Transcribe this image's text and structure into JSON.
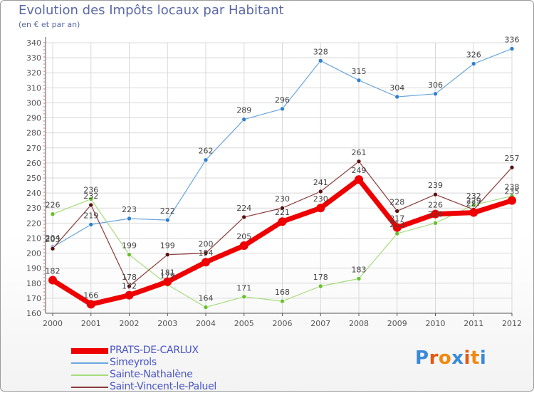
{
  "title": "Evolution des Impôts locaux par Habitant",
  "subtitle": "(en € et par an)",
  "logo_text": "Proxiti",
  "colors": {
    "title": "#5a68a8",
    "grid": "#d8d8d8",
    "axis": "#555555",
    "label": "#555555",
    "logo_letters": [
      "#3a8ad8",
      "#e05a10",
      "#f08a10",
      "#3a8ad8",
      "#e05a10",
      "#f08a10",
      "#3a8ad8"
    ]
  },
  "chart_data": {
    "type": "line",
    "title": "Evolution des Impôts locaux par Habitant",
    "subtitle": "(en € et par an)",
    "xlabel": "",
    "ylabel": "",
    "x": [
      "2000",
      "2001",
      "2002",
      "2003",
      "2004",
      "2005",
      "2006",
      "2007",
      "2008",
      "2009",
      "2010",
      "2011",
      "2012"
    ],
    "ylim": [
      160,
      340
    ],
    "yticks": [
      160,
      170,
      180,
      190,
      200,
      210,
      220,
      230,
      240,
      250,
      260,
      270,
      280,
      290,
      300,
      310,
      320,
      330,
      340
    ],
    "grid": true,
    "legend_position": "bottom-left",
    "series": [
      {
        "name": "PRATS-DE-CARLUX",
        "color": "#ee0000",
        "marker": "#ee0000",
        "width": 7,
        "labels": true,
        "values": [
          182,
          166,
          172,
          181,
          194,
          205,
          221,
          230,
          249,
          217,
          226,
          227,
          235
        ],
        "label_text": [
          "182",
          "166",
          "172",
          "181",
          "194",
          "205",
          "221",
          "230",
          "249",
          "217",
          "226",
          "227",
          "235"
        ]
      },
      {
        "name": "Simeyrols",
        "color": "#6aa6dc",
        "marker": "#2f7fd0",
        "width": 1.2,
        "labels": true,
        "values": [
          204,
          219,
          223,
          222,
          262,
          289,
          296,
          328,
          315,
          304,
          306,
          326,
          336
        ],
        "label_text": [
          "204",
          "219",
          "223",
          "222",
          "262",
          "289",
          "296",
          "328",
          "315",
          "304",
          "306",
          "326",
          "336"
        ]
      },
      {
        "name": "Sainte-Nathalène",
        "color": "#a6dc7c",
        "marker": "#66c02a",
        "width": 1.2,
        "labels": true,
        "values": [
          226,
          236,
          199,
          179,
          164,
          171,
          168,
          178,
          183,
          213,
          220,
          232,
          238
        ],
        "label_text": [
          "226",
          "236",
          "199",
          "179",
          "164",
          "171",
          "168",
          "178",
          "183",
          "213",
          "220",
          "232",
          "238"
        ]
      },
      {
        "name": "Saint-Vincent-le-Paluel",
        "color": "#8a3a3a",
        "marker": "#5a0e0e",
        "width": 1.2,
        "labels": true,
        "values": [
          203,
          232,
          178,
          199,
          200,
          224,
          230,
          241,
          261,
          228,
          239,
          229,
          257
        ],
        "label_text": [
          "203",
          "232",
          "178",
          "199",
          "200",
          "224",
          "230",
          "241",
          "261",
          "228",
          "239",
          "229",
          "257"
        ]
      }
    ]
  }
}
